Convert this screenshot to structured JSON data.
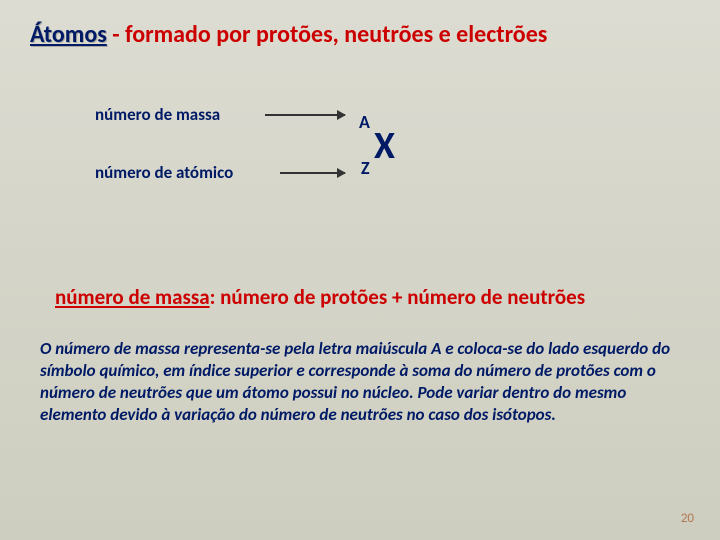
{
  "title": {
    "word": "Átomos",
    "rest": " - formado por protões, neutrões e electrões"
  },
  "diagram": {
    "label_massa": "número de massa",
    "label_atomico": "número de atómico",
    "superscript": "A",
    "subscript": "Z",
    "symbol": "X"
  },
  "definition": {
    "key": "número de massa",
    "rest": ": número de protões + número de neutrões"
  },
  "paragraph": "O número de massa representa-se pela letra maiúscula A e coloca-se do lado esquerdo do símbolo químico, em índice superior e corresponde à soma do número de protões com o número de neutrões que um átomo possui no núcleo. Pode variar dentro do mesmo elemento devido à variação do número de neutrões no caso dos isótopos.",
  "page_number": "20",
  "colors": {
    "dark_blue": "#001a66",
    "red": "#cc0000",
    "bg_top": "#dcdcd2",
    "bg_bottom": "#cecec0",
    "page_num": "#b07850"
  }
}
